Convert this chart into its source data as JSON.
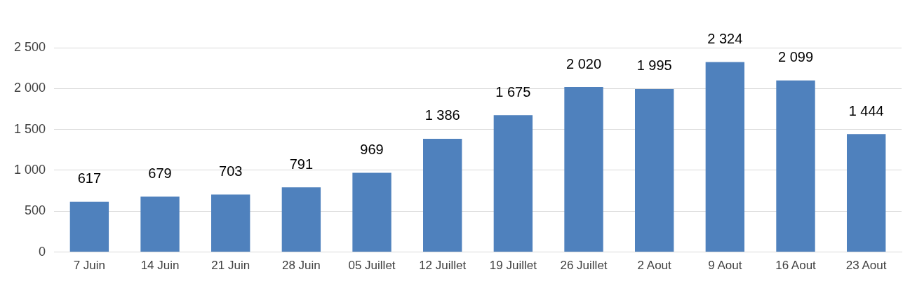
{
  "chart_data": {
    "type": "bar",
    "categories": [
      "7 Juin",
      "14 Juin",
      "21 Juin",
      "28 Juin",
      "05 Juillet",
      "12 Juillet",
      "19 Juillet",
      "26 Juillet",
      "2 Aout",
      "9 Aout",
      "16 Aout",
      "23 Aout"
    ],
    "values": [
      617,
      679,
      703,
      791,
      969,
      1386,
      1675,
      2020,
      1995,
      2324,
      2099,
      1444
    ],
    "value_labels": [
      "617",
      "679",
      "703",
      "791",
      "969",
      "1 386",
      "1 675",
      "2 020",
      "1 995",
      "2 324",
      "2 099",
      "1 444"
    ],
    "color": "#4f81bd",
    "ylim": [
      0,
      2500
    ],
    "yticks": [
      0,
      500,
      {
        "value": 1000,
        "label": "1 000"
      },
      {
        "value": 1500,
        "label": "1 500"
      },
      {
        "value": 2000,
        "label": "2 000"
      },
      {
        "value": 2500,
        "label": "2 500"
      }
    ],
    "grid": "y",
    "legend": false
  }
}
